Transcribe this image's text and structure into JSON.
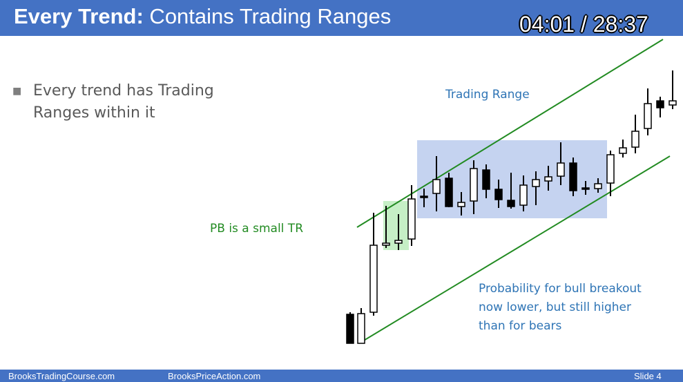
{
  "header": {
    "title_bold": "Every Trend:",
    "title_rest": " Contains Trading Ranges",
    "timer": "04:01 / 28:37"
  },
  "bullet": {
    "text": "Every trend has Trading Ranges within it"
  },
  "labels": {
    "trading_range": "Trading Range",
    "pb": "PB is a small TR",
    "probability_line1": "Probability for bull breakout",
    "probability_line2": "now lower, but still higher",
    "probability_line3": "than for bears"
  },
  "footer": {
    "left": "BrooksTradingCourse.com",
    "center": "BrooksPriceAction.com",
    "slide": "Slide  4"
  },
  "colors": {
    "header_blue": "#4472c4",
    "channel_green": "#228b22",
    "range_box": "#c5d3f0",
    "pullback_box": "#c6efc6",
    "label_blue": "#2e74b5"
  }
}
